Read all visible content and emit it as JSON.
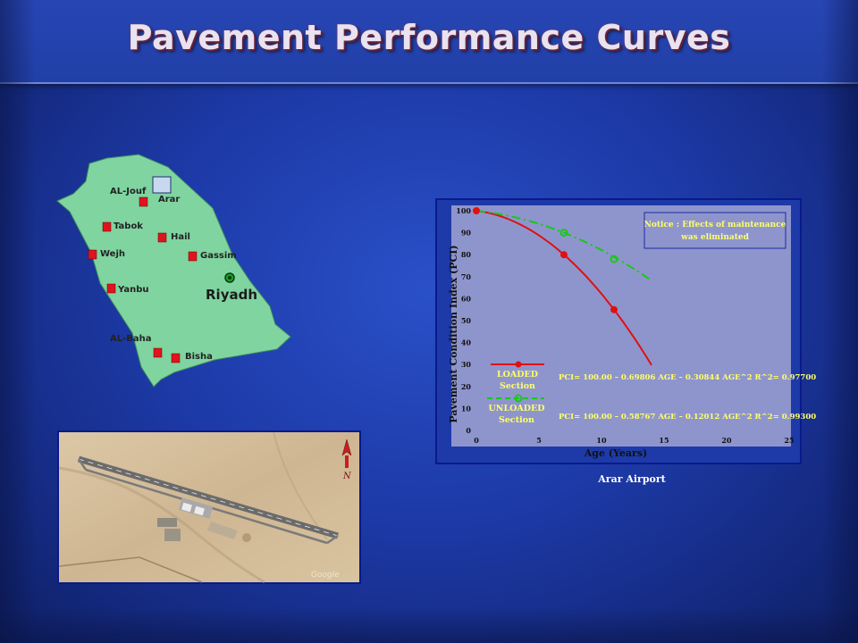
{
  "slide": {
    "title": "Pavement Performance Curves"
  },
  "map": {
    "cities": [
      {
        "name": "AL-Jouf"
      },
      {
        "name": "Arar"
      },
      {
        "name": "Tabok"
      },
      {
        "name": "Hail"
      },
      {
        "name": "Wejh"
      },
      {
        "name": "Gassim"
      },
      {
        "name": "Yanbu"
      },
      {
        "name": "Riyadh"
      },
      {
        "name": "AL-Baha"
      },
      {
        "name": "Bisha"
      }
    ],
    "land_color": "#7fd4a0",
    "marker_color": "#e0141e",
    "riyadh_marker_color": "#1aa02a"
  },
  "satellite": {
    "north_label": "N",
    "watermark": "Google"
  },
  "chart_data": {
    "type": "line",
    "xlabel": "Age (Years)",
    "ylabel": "Pavement Condition Index (PCI)",
    "xlim": [
      0,
      25
    ],
    "ylim": [
      0,
      100
    ],
    "xticks": [
      0,
      5,
      10,
      15,
      20,
      25
    ],
    "yticks": [
      0,
      10,
      20,
      30,
      40,
      50,
      60,
      70,
      80,
      90,
      100
    ],
    "series": [
      {
        "name": "LOADED Section",
        "color": "#e01010",
        "dash": "solid",
        "equation": "PCI= 100.00 – 0.69806 AGE – 0.30844 AGE^2  R^2= 0.97700",
        "curve": {
          "intercept": 100.0,
          "a1": -0.69806,
          "a2": -0.30844,
          "x_end": 14
        },
        "points": [
          [
            0,
            100
          ],
          [
            7,
            80
          ],
          [
            11,
            55
          ]
        ]
      },
      {
        "name": "UNLOADED Section",
        "color": "#18c818",
        "dash": "dashed",
        "equation": "PCI= 100.00 – 0.58767 AGE – 0.12012 AGE^2  R^2= 0.99300",
        "curve": {
          "intercept": 100.0,
          "a1": -0.58767,
          "a2": -0.12012,
          "x_end": 14
        },
        "points": [
          [
            7,
            90
          ],
          [
            11,
            78
          ]
        ]
      }
    ],
    "legend": [
      {
        "line1": "LOADED",
        "line2": "Section"
      },
      {
        "line1": "UNLOADED",
        "line2": "Section"
      }
    ],
    "notice": {
      "line1": "Notice : Effects of maintenance",
      "line2": "was eliminated"
    },
    "caption": "Arar Airport",
    "colors": {
      "plot_bg": "#8e95cd",
      "axis_text": "#101010",
      "label_text": "#ffff66"
    }
  }
}
